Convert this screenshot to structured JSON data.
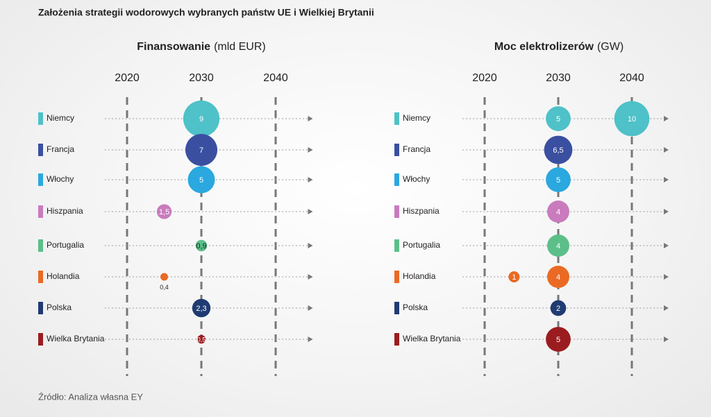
{
  "title": "Założenia strategii wodorowych wybranych państw UE i Wielkiej Brytanii",
  "source": "Źródło: Analiza własna EY",
  "chart_data": [
    {
      "type": "bubble",
      "title": "Finansowanie",
      "unit": "(mld EUR)",
      "categories": [
        "Niemcy",
        "Francja",
        "Włochy",
        "Hiszpania",
        "Portugalia",
        "Holandia",
        "Polska",
        "Wielka Brytania"
      ],
      "colors": [
        "#4fc1c8",
        "#3a4fa0",
        "#2aa8df",
        "#c97bbd",
        "#5cbf8a",
        "#ea6a24",
        "#1f3b72",
        "#9b1c1f"
      ],
      "xlim": [
        2017,
        2045
      ],
      "xticks": [
        2020,
        2030,
        2040
      ],
      "series": [
        {
          "x": [
            2030,
            2030,
            2030,
            2025,
            2030,
            2025,
            2030,
            2030
          ],
          "values": [
            9,
            7,
            5,
            1.5,
            0.9,
            0.4,
            2.3,
            0.5
          ],
          "value_labels": [
            "9",
            "7",
            "5",
            "1,5",
            "0,9",
            "0,4",
            "2,3",
            "0,5"
          ]
        }
      ]
    },
    {
      "type": "bubble",
      "title": "Moc elektrolizerów",
      "unit": "(GW)",
      "categories": [
        "Niemcy",
        "Francja",
        "Włochy",
        "Hiszpania",
        "Portugalia",
        "Holandia",
        "Polska",
        "Wielka Brytania"
      ],
      "colors": [
        "#4fc1c8",
        "#3a4fa0",
        "#2aa8df",
        "#c97bbd",
        "#5cbf8a",
        "#ea6a24",
        "#1f3b72",
        "#9b1c1f"
      ],
      "xlim": [
        2017,
        2045
      ],
      "xticks": [
        2020,
        2030,
        2040
      ],
      "series": [
        {
          "x": [
            2030,
            2030,
            2030,
            2030,
            2030,
            2030,
            2030,
            2030
          ],
          "values": [
            5,
            6.5,
            5,
            4,
            4,
            4,
            2,
            5
          ],
          "value_labels": [
            "5",
            "6,5",
            "5",
            "4",
            "4",
            "4",
            "2",
            "5"
          ]
        },
        {
          "x": [
            2040,
            null,
            null,
            null,
            null,
            2024,
            null,
            null
          ],
          "values": [
            10,
            null,
            null,
            null,
            null,
            1,
            null,
            null
          ]
        }
      ]
    }
  ]
}
